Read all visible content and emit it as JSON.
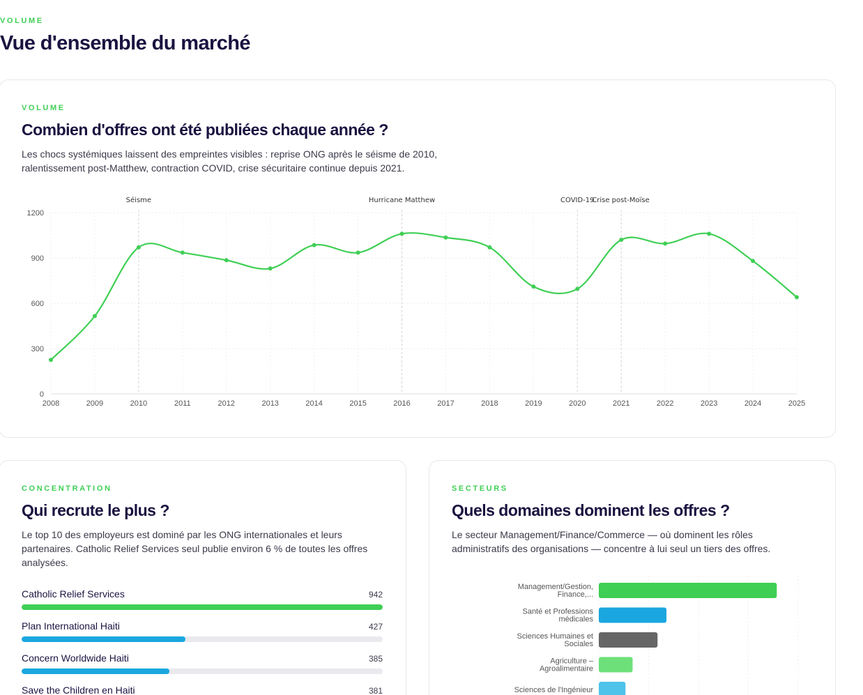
{
  "page": {
    "eyebrow": "VOLUME",
    "title": "Vue d'ensemble du marché"
  },
  "volume_card": {
    "eyebrow": "VOLUME",
    "title": "Combien d'offres ont été publiées chaque année ?",
    "description": "Les chocs systémiques laissent des empreintes visibles : reprise ONG après le séisme de 2010, ralentissement post-Matthew, contraction COVID, crise sécuritaire continue depuis 2021."
  },
  "concentration_card": {
    "eyebrow": "CONCENTRATION",
    "title": "Qui recrute le plus ?",
    "description": "Le top 10 des employeurs est dominé par les ONG internationales et leurs partenaires. Catholic Relief Services seul publie environ 6 % de toutes les offres analysées."
  },
  "sectors_card": {
    "eyebrow": "SECTEURS",
    "title": "Quels domaines dominent les offres ?",
    "description": "Le secteur Management/Finance/Commerce — où dominent les rôles administratifs des organisations — concentre à lui seul un tiers des offres."
  },
  "chart_data": [
    {
      "type": "line",
      "title": "",
      "xlabel": "",
      "ylabel": "",
      "x": [
        2008,
        2009,
        2010,
        2011,
        2012,
        2013,
        2014,
        2015,
        2016,
        2017,
        2018,
        2019,
        2020,
        2021,
        2022,
        2023,
        2024,
        2025
      ],
      "series": [
        {
          "values": [
            225,
            515,
            970,
            935,
            885,
            830,
            985,
            935,
            1060,
            1035,
            970,
            710,
            695,
            1020,
            995,
            1060,
            880,
            640
          ]
        }
      ],
      "ylim": [
        0,
        1200
      ],
      "yticks": [
        0,
        300,
        600,
        900,
        1200
      ],
      "grid": true,
      "color": "#3fcf55",
      "annotations": [
        {
          "x": 2010,
          "label": "Séisme"
        },
        {
          "x": 2016,
          "label": "Hurricane Matthew"
        },
        {
          "x": 2020,
          "label": "COVID-19"
        },
        {
          "x": 2021,
          "label": "Crise post-Moïse"
        }
      ]
    },
    {
      "type": "bar",
      "orientation": "horizontal",
      "categories": [
        "Catholic Relief Services",
        "Plan International Haiti",
        "Concern Worldwide Haiti",
        "Save the Children en Haiti"
      ],
      "values": [
        942,
        427,
        385,
        381
      ],
      "xlim": [
        0,
        942
      ],
      "colors": [
        "#3fcf55",
        "#1aa7df",
        "#1aa7df",
        "#1aa7df"
      ]
    },
    {
      "type": "bar",
      "orientation": "horizontal",
      "categories": [
        [
          "Management/Gestion,",
          "Finance,..."
        ],
        [
          "Santé et Professions",
          "médicales"
        ],
        [
          "Sciences Humaines et",
          "Sociales"
        ],
        [
          "Agriculture –",
          "Agroalimentaire"
        ],
        [
          "Sciences de l'Ingénieur"
        ]
      ],
      "values": [
        100,
        38,
        33,
        19,
        15
      ],
      "xlim": [
        0,
        112
      ],
      "colors": [
        "#3fcf55",
        "#1aa7df",
        "#666666",
        "#6ee07a",
        "#4fc3ea"
      ]
    }
  ]
}
